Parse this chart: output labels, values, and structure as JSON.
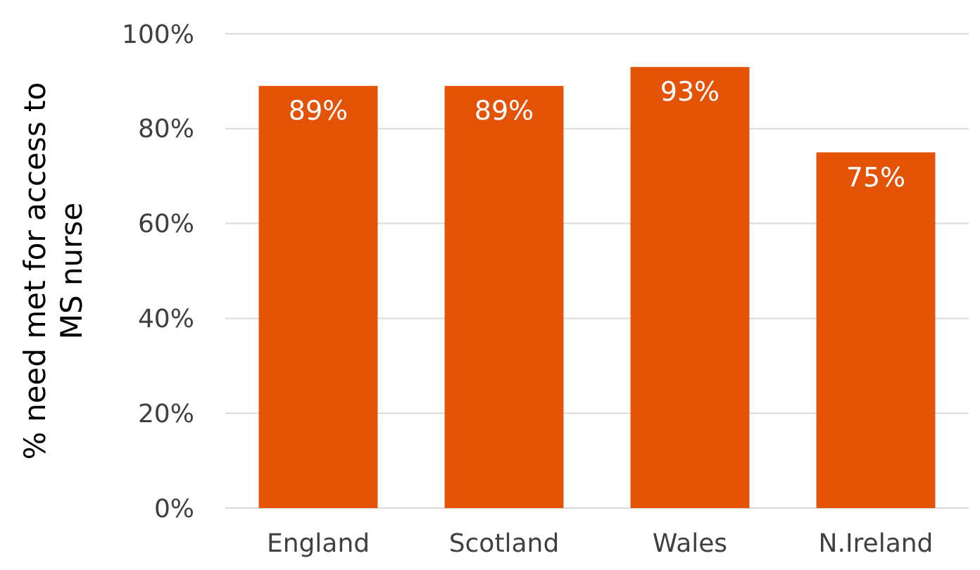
{
  "chart_data": {
    "type": "bar",
    "ylabel": "% need met for access to MS nurse",
    "categories": [
      "England",
      "Scotland",
      "Wales",
      "N.Ireland"
    ],
    "values": [
      89,
      89,
      93,
      75
    ],
    "value_labels": [
      "89%",
      "89%",
      "93%",
      "75%"
    ],
    "color": "#e35205",
    "ylim": [
      0,
      100
    ],
    "yticks": [
      {
        "value": 0,
        "label": "0%"
      },
      {
        "value": 20,
        "label": "20%"
      },
      {
        "value": 40,
        "label": "40%"
      },
      {
        "value": 60,
        "label": "60%"
      },
      {
        "value": 80,
        "label": "80%"
      },
      {
        "value": 100,
        "label": "100%"
      }
    ],
    "grid": "y"
  }
}
